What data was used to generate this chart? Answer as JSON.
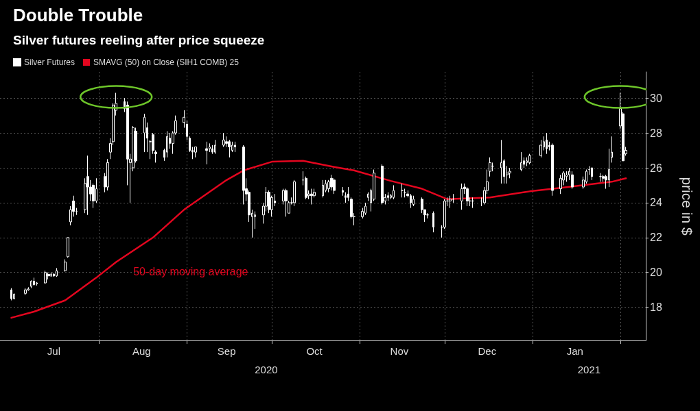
{
  "chart_data": {
    "type": "candlestick",
    "title": "Double Trouble",
    "subtitle": "Silver futures reeling after price squeeze",
    "ylabel": "price in $",
    "x": [
      "2020-07-01",
      "2020-07-02",
      "2020-07-06",
      "2020-07-07",
      "2020-07-08",
      "2020-07-09",
      "2020-07-10",
      "2020-07-13",
      "2020-07-14",
      "2020-07-15",
      "2020-07-16",
      "2020-07-17",
      "2020-07-20",
      "2020-07-21",
      "2020-07-22",
      "2020-07-23",
      "2020-07-24",
      "2020-07-27",
      "2020-07-28",
      "2020-07-29",
      "2020-07-30",
      "2020-07-31",
      "2020-08-03",
      "2020-08-04",
      "2020-08-05",
      "2020-08-06",
      "2020-08-07",
      "2020-08-10",
      "2020-08-11",
      "2020-08-12",
      "2020-08-13",
      "2020-08-14",
      "2020-08-17",
      "2020-08-18",
      "2020-08-19",
      "2020-08-20",
      "2020-08-21",
      "2020-08-24",
      "2020-08-25",
      "2020-08-26",
      "2020-08-27",
      "2020-08-28",
      "2020-08-31",
      "2020-09-01",
      "2020-09-02",
      "2020-09-03",
      "2020-09-04",
      "2020-09-08",
      "2020-09-09",
      "2020-09-10",
      "2020-09-11",
      "2020-09-14",
      "2020-09-15",
      "2020-09-16",
      "2020-09-17",
      "2020-09-18",
      "2020-09-21",
      "2020-09-22",
      "2020-09-23",
      "2020-09-24",
      "2020-09-25",
      "2020-09-28",
      "2020-09-29",
      "2020-09-30",
      "2020-10-01",
      "2020-10-02",
      "2020-10-05",
      "2020-10-06",
      "2020-10-07",
      "2020-10-08",
      "2020-10-09",
      "2020-10-12",
      "2020-10-13",
      "2020-10-14",
      "2020-10-15",
      "2020-10-16",
      "2020-10-19",
      "2020-10-20",
      "2020-10-21",
      "2020-10-22",
      "2020-10-23",
      "2020-10-26",
      "2020-10-27",
      "2020-10-28",
      "2020-10-29",
      "2020-10-30",
      "2020-11-02",
      "2020-11-03",
      "2020-11-04",
      "2020-11-05",
      "2020-11-06",
      "2020-11-09",
      "2020-11-10",
      "2020-11-11",
      "2020-11-12",
      "2020-11-13",
      "2020-11-16",
      "2020-11-17",
      "2020-11-18",
      "2020-11-19",
      "2020-11-20",
      "2020-11-23",
      "2020-11-24",
      "2020-11-25",
      "2020-11-27",
      "2020-11-30",
      "2020-12-01",
      "2020-12-02",
      "2020-12-03",
      "2020-12-04",
      "2020-12-07",
      "2020-12-08",
      "2020-12-09",
      "2020-12-10",
      "2020-12-11",
      "2020-12-14",
      "2020-12-15",
      "2020-12-16",
      "2020-12-17",
      "2020-12-18",
      "2020-12-21",
      "2020-12-22",
      "2020-12-23",
      "2020-12-24",
      "2020-12-28",
      "2020-12-29",
      "2020-12-30",
      "2020-12-31",
      "2021-01-04",
      "2021-01-05",
      "2021-01-06",
      "2021-01-07",
      "2021-01-08",
      "2021-01-11",
      "2021-01-12",
      "2021-01-13",
      "2021-01-14",
      "2021-01-15",
      "2021-01-19",
      "2021-01-20",
      "2021-01-21",
      "2021-01-22",
      "2021-01-25",
      "2021-01-26",
      "2021-01-27",
      "2021-01-28",
      "2021-01-29",
      "2021-02-01",
      "2021-02-02",
      "2021-02-03"
    ],
    "series": [
      {
        "name": "Silver Futures",
        "color": "#ffffff",
        "ohlc": [
          [
            19.0,
            19.1,
            18.4,
            18.5
          ],
          [
            18.5,
            18.8,
            18.45,
            18.75
          ],
          [
            18.8,
            19.1,
            18.7,
            19.0
          ],
          [
            19.0,
            19.15,
            18.95,
            19.05
          ],
          [
            19.2,
            19.55,
            19.1,
            19.5
          ],
          [
            19.5,
            19.7,
            19.25,
            19.3
          ],
          [
            19.35,
            19.45,
            19.25,
            19.4
          ],
          [
            19.4,
            20.1,
            19.35,
            20.0
          ],
          [
            19.9,
            20.0,
            19.6,
            19.8
          ],
          [
            19.8,
            20.0,
            19.75,
            19.9
          ],
          [
            19.9,
            19.95,
            19.75,
            19.8
          ],
          [
            19.8,
            20.25,
            19.75,
            20.1
          ],
          [
            20.1,
            20.75,
            20.05,
            20.6
          ],
          [
            20.9,
            22.0,
            20.85,
            22.0
          ],
          [
            22.9,
            23.8,
            22.7,
            23.6
          ],
          [
            24.1,
            24.4,
            23.2,
            23.5
          ],
          [
            23.5,
            23.7,
            23.3,
            23.5
          ],
          [
            23.6,
            25.4,
            23.4,
            25.1
          ],
          [
            25.5,
            26.7,
            23.3,
            24.9
          ],
          [
            24.9,
            25.3,
            24.1,
            24.5
          ],
          [
            25.0,
            25.1,
            23.7,
            24.1
          ],
          [
            24.1,
            25.4,
            24.0,
            24.8
          ],
          [
            25.5,
            25.7,
            24.6,
            24.9
          ],
          [
            24.9,
            26.5,
            24.7,
            26.3
          ],
          [
            26.9,
            27.7,
            26.5,
            27.4
          ],
          [
            27.5,
            29.7,
            27.3,
            29.6
          ],
          [
            29.3,
            30.3,
            29.0,
            29.7
          ],
          [
            29.8,
            30.0,
            29.2,
            29.4
          ],
          [
            29.6,
            29.8,
            25.0,
            26.5
          ],
          [
            26.3,
            26.8,
            24.0,
            26.5
          ],
          [
            26.0,
            28.4,
            25.8,
            28.3
          ],
          [
            28.1,
            28.3,
            26.3,
            26.4
          ],
          [
            28.0,
            29.1,
            26.9,
            28.9
          ],
          [
            28.3,
            28.6,
            26.9,
            27.7
          ],
          [
            27.5,
            27.6,
            26.5,
            27.5
          ],
          [
            27.9,
            28.0,
            26.8,
            27.0
          ],
          [
            26.9,
            27.0,
            26.3,
            26.8
          ],
          [
            27.0,
            27.1,
            26.4,
            26.6
          ],
          [
            26.9,
            28.1,
            26.6,
            27.8
          ],
          [
            27.7,
            28.0,
            27.1,
            27.4
          ],
          [
            27.4,
            28.1,
            26.8,
            28.0
          ],
          [
            28.0,
            29.0,
            27.9,
            28.7
          ],
          [
            28.6,
            29.3,
            28.3,
            28.9
          ],
          [
            28.5,
            28.7,
            27.6,
            27.8
          ],
          [
            27.7,
            27.8,
            26.9,
            27.0
          ],
          [
            27.0,
            27.2,
            26.5,
            26.9
          ],
          [
            26.9,
            27.2,
            26.6,
            27.2
          ],
          [
            27.1,
            27.5,
            26.2,
            27.0
          ],
          [
            27.1,
            27.4,
            26.9,
            27.2
          ],
          [
            27.1,
            27.3,
            26.8,
            26.9
          ],
          [
            26.9,
            27.6,
            26.8,
            27.3
          ],
          [
            27.3,
            28.0,
            27.2,
            27.6
          ],
          [
            27.5,
            27.8,
            27.2,
            27.4
          ],
          [
            27.5,
            27.6,
            26.6,
            27.2
          ],
          [
            27.0,
            27.5,
            26.9,
            27.3
          ],
          [
            27.3,
            27.5,
            26.9,
            27.2
          ],
          [
            27.2,
            27.3,
            23.9,
            24.7
          ],
          [
            24.8,
            25.4,
            24.1,
            24.5
          ],
          [
            24.6,
            24.7,
            22.9,
            23.3
          ],
          [
            23.2,
            23.6,
            22.0,
            23.4
          ],
          [
            23.2,
            23.5,
            22.5,
            23.3
          ],
          [
            23.3,
            24.0,
            22.8,
            23.8
          ],
          [
            23.8,
            24.9,
            23.5,
            24.6
          ],
          [
            24.6,
            24.7,
            23.4,
            23.6
          ],
          [
            23.6,
            24.4,
            23.2,
            24.3
          ],
          [
            24.1,
            24.5,
            23.8,
            24.0
          ],
          [
            24.1,
            24.8,
            23.9,
            24.7
          ],
          [
            24.7,
            24.8,
            23.2,
            24.1
          ],
          [
            23.4,
            24.1,
            23.4,
            24.0
          ],
          [
            24.0,
            24.3,
            23.9,
            24.0
          ],
          [
            24.0,
            25.3,
            23.8,
            25.2
          ],
          [
            25.3,
            25.8,
            25.0,
            25.3
          ],
          [
            25.4,
            25.5,
            24.2,
            24.3
          ],
          [
            24.4,
            24.7,
            24.2,
            24.5
          ],
          [
            24.5,
            24.8,
            23.9,
            24.4
          ],
          [
            24.4,
            24.8,
            24.3,
            24.6
          ],
          [
            24.4,
            25.3,
            24.3,
            25.0
          ],
          [
            24.7,
            25.3,
            24.6,
            25.1
          ],
          [
            24.8,
            25.3,
            24.6,
            25.2
          ],
          [
            25.4,
            25.6,
            24.7,
            24.9
          ],
          [
            25.3,
            25.4,
            24.5,
            24.7
          ],
          [
            24.7,
            24.9,
            24.4,
            24.6
          ],
          [
            24.4,
            24.6,
            24.0,
            24.3
          ],
          [
            24.5,
            24.9,
            24.1,
            24.3
          ],
          [
            24.2,
            24.3,
            23.1,
            23.2
          ],
          [
            23.2,
            23.4,
            22.7,
            23.2
          ],
          [
            23.2,
            23.7,
            23.1,
            23.5
          ],
          [
            23.4,
            24.0,
            23.3,
            23.8
          ],
          [
            24.3,
            24.6,
            24.1,
            24.5
          ],
          [
            24.0,
            24.8,
            23.5,
            24.7
          ],
          [
            24.2,
            25.9,
            24.1,
            25.7
          ],
          [
            26.1,
            26.2,
            23.9,
            24.0
          ],
          [
            24.1,
            24.5,
            23.9,
            24.3
          ],
          [
            24.4,
            24.6,
            24.1,
            24.3
          ],
          [
            24.3,
            24.5,
            24.2,
            24.4
          ],
          [
            24.3,
            25.0,
            24.2,
            24.7
          ],
          [
            24.7,
            25.1,
            24.3,
            24.7
          ],
          [
            24.6,
            24.8,
            24.3,
            24.6
          ],
          [
            24.5,
            24.7,
            24.3,
            24.4
          ],
          [
            24.4,
            24.5,
            23.7,
            24.0
          ],
          [
            23.9,
            24.4,
            23.8,
            24.2
          ],
          [
            24.2,
            24.3,
            23.4,
            23.6
          ],
          [
            23.6,
            23.6,
            22.9,
            23.3
          ],
          [
            23.3,
            23.4,
            23.1,
            23.3
          ],
          [
            23.4,
            23.5,
            22.3,
            22.6
          ],
          [
            22.6,
            22.7,
            22.0,
            22.6
          ],
          [
            22.6,
            24.2,
            22.5,
            24.1
          ],
          [
            24.1,
            24.3,
            23.8,
            24.1
          ],
          [
            24.1,
            24.4,
            23.7,
            24.2
          ],
          [
            24.2,
            24.5,
            24.0,
            24.2
          ],
          [
            24.1,
            25.1,
            23.6,
            24.8
          ],
          [
            24.9,
            25.1,
            24.5,
            24.8
          ],
          [
            24.8,
            24.9,
            23.8,
            24.1
          ],
          [
            24.1,
            24.3,
            23.8,
            24.1
          ],
          [
            24.1,
            24.3,
            23.7,
            24.1
          ],
          [
            24.1,
            24.3,
            23.8,
            24.1
          ],
          [
            24.0,
            24.9,
            23.9,
            24.7
          ],
          [
            24.7,
            25.9,
            24.5,
            25.2
          ],
          [
            25.8,
            26.6,
            25.5,
            26.3
          ],
          [
            26.1,
            26.3,
            25.8,
            26.1
          ],
          [
            26.0,
            27.6,
            25.1,
            26.3
          ],
          [
            26.4,
            26.5,
            25.1,
            25.5
          ],
          [
            25.6,
            26.1,
            25.1,
            25.7
          ],
          [
            25.7,
            26.0,
            25.4,
            25.8
          ],
          [
            25.9,
            26.9,
            25.8,
            26.3
          ],
          [
            26.4,
            26.6,
            26.0,
            26.2
          ],
          [
            26.3,
            26.6,
            26.1,
            26.4
          ],
          [
            26.3,
            26.8,
            26.2,
            26.7
          ],
          [
            26.7,
            27.6,
            26.6,
            27.3
          ],
          [
            27.2,
            27.8,
            27.0,
            27.5
          ],
          [
            27.6,
            28.0,
            26.8,
            27.1
          ],
          [
            27.3,
            27.5,
            27.0,
            27.2
          ],
          [
            27.3,
            27.4,
            24.4,
            24.7
          ],
          [
            24.8,
            25.6,
            24.5,
            25.4
          ],
          [
            25.3,
            25.8,
            25.0,
            25.7
          ],
          [
            25.5,
            25.8,
            25.2,
            25.6
          ],
          [
            25.6,
            26.0,
            25.3,
            25.8
          ],
          [
            25.6,
            25.8,
            24.8,
            24.9
          ],
          [
            24.9,
            25.5,
            24.8,
            25.3
          ],
          [
            25.2,
            25.9,
            25.1,
            25.8
          ],
          [
            25.9,
            26.1,
            25.6,
            25.9
          ],
          [
            26.0,
            26.0,
            25.3,
            25.5
          ],
          [
            25.5,
            25.7,
            25.2,
            25.5
          ],
          [
            25.5,
            25.6,
            25.2,
            25.4
          ],
          [
            25.5,
            25.6,
            24.8,
            25.3
          ],
          [
            25.3,
            27.1,
            24.9,
            25.9
          ],
          [
            26.6,
            27.8,
            26.3,
            26.9
          ],
          [
            28.4,
            30.3,
            28.2,
            29.4
          ],
          [
            29.1,
            29.2,
            26.4,
            26.4
          ],
          [
            26.8,
            27.2,
            26.7,
            27.0
          ]
        ]
      },
      {
        "name": "SMAVG (50) on Close (SIH1 COMB) 25",
        "type": "line",
        "color": "#e3061f",
        "x": [
          "2020-07-01",
          "2020-07-09",
          "2020-07-20",
          "2020-07-31",
          "2020-08-07",
          "2020-08-20",
          "2020-08-31",
          "2020-09-15",
          "2020-09-21",
          "2020-10-01",
          "2020-10-12",
          "2020-10-23",
          "2020-10-30",
          "2020-11-12",
          "2020-11-23",
          "2020-12-02",
          "2020-12-17",
          "2020-12-31",
          "2021-01-11",
          "2021-01-29",
          "2021-02-03"
        ],
        "values": [
          17.4,
          17.75,
          18.4,
          19.7,
          20.6,
          22.0,
          23.6,
          25.3,
          25.85,
          26.35,
          26.4,
          26.05,
          25.85,
          25.25,
          24.8,
          24.2,
          24.3,
          24.65,
          24.85,
          25.2,
          25.4
        ]
      }
    ],
    "annotations": [
      "50-day moving average",
      "2020",
      "2021"
    ],
    "xlim": [
      "2020-06-27",
      "2021-02-10"
    ],
    "xticks": [
      {
        "value": "2020-07-16",
        "label": "Jul"
      },
      {
        "value": "2020-08-01",
        "label": null
      },
      {
        "value": "2020-08-16",
        "label": "Aug"
      },
      {
        "value": "2020-09-01",
        "label": null
      },
      {
        "value": "2020-09-15",
        "label": "Sep"
      },
      {
        "value": "2020-10-01",
        "label": null
      },
      {
        "value": "2020-10-16",
        "label": "Oct"
      },
      {
        "value": "2020-11-01",
        "label": null
      },
      {
        "value": "2020-11-15",
        "label": "Nov"
      },
      {
        "value": "2020-12-01",
        "label": null
      },
      {
        "value": "2020-12-16",
        "label": "Dec"
      },
      {
        "value": "2021-01-01",
        "label": null
      },
      {
        "value": "2021-01-16",
        "label": "Jan"
      },
      {
        "value": "2021-02-01",
        "label": null
      }
    ],
    "ylim": [
      16.1,
      31.5
    ],
    "yticks": [
      18,
      20,
      22,
      24,
      26,
      28,
      30
    ],
    "grid": true,
    "legend": "top left",
    "marker": "none"
  }
}
